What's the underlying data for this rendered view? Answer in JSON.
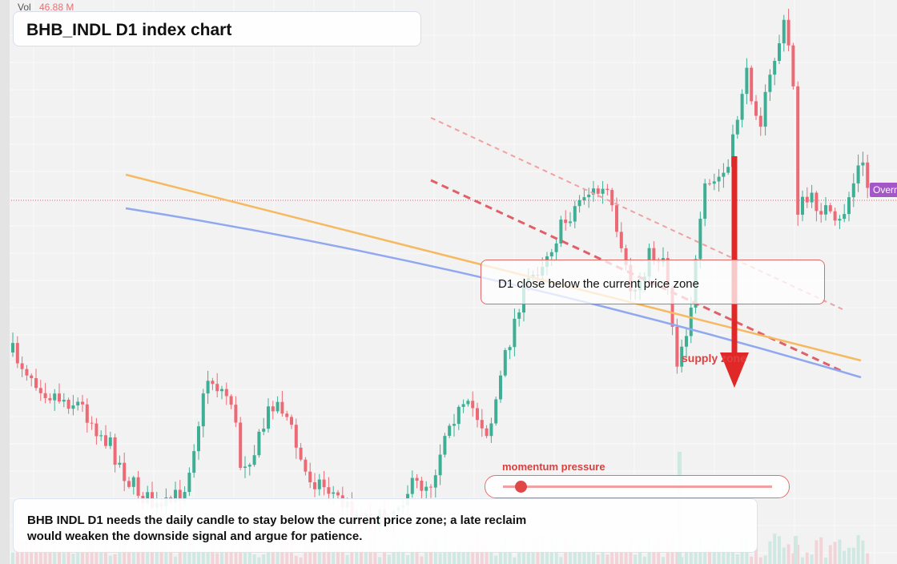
{
  "header": {
    "title": "BHB_INDL D1 index chart",
    "vol_label": "Vol",
    "vol_value": "46.88 M"
  },
  "annotations": {
    "callout": "D1 close below the current price zone",
    "zone": "supply zone",
    "badge": "Overn",
    "slider_label": "momentum pressure"
  },
  "note": {
    "line1": "BHB INDL D1 needs the daily candle to stay below the current price zone; a late reclaim",
    "line2": "would weaken the downside signal and argue for patience."
  }
}
